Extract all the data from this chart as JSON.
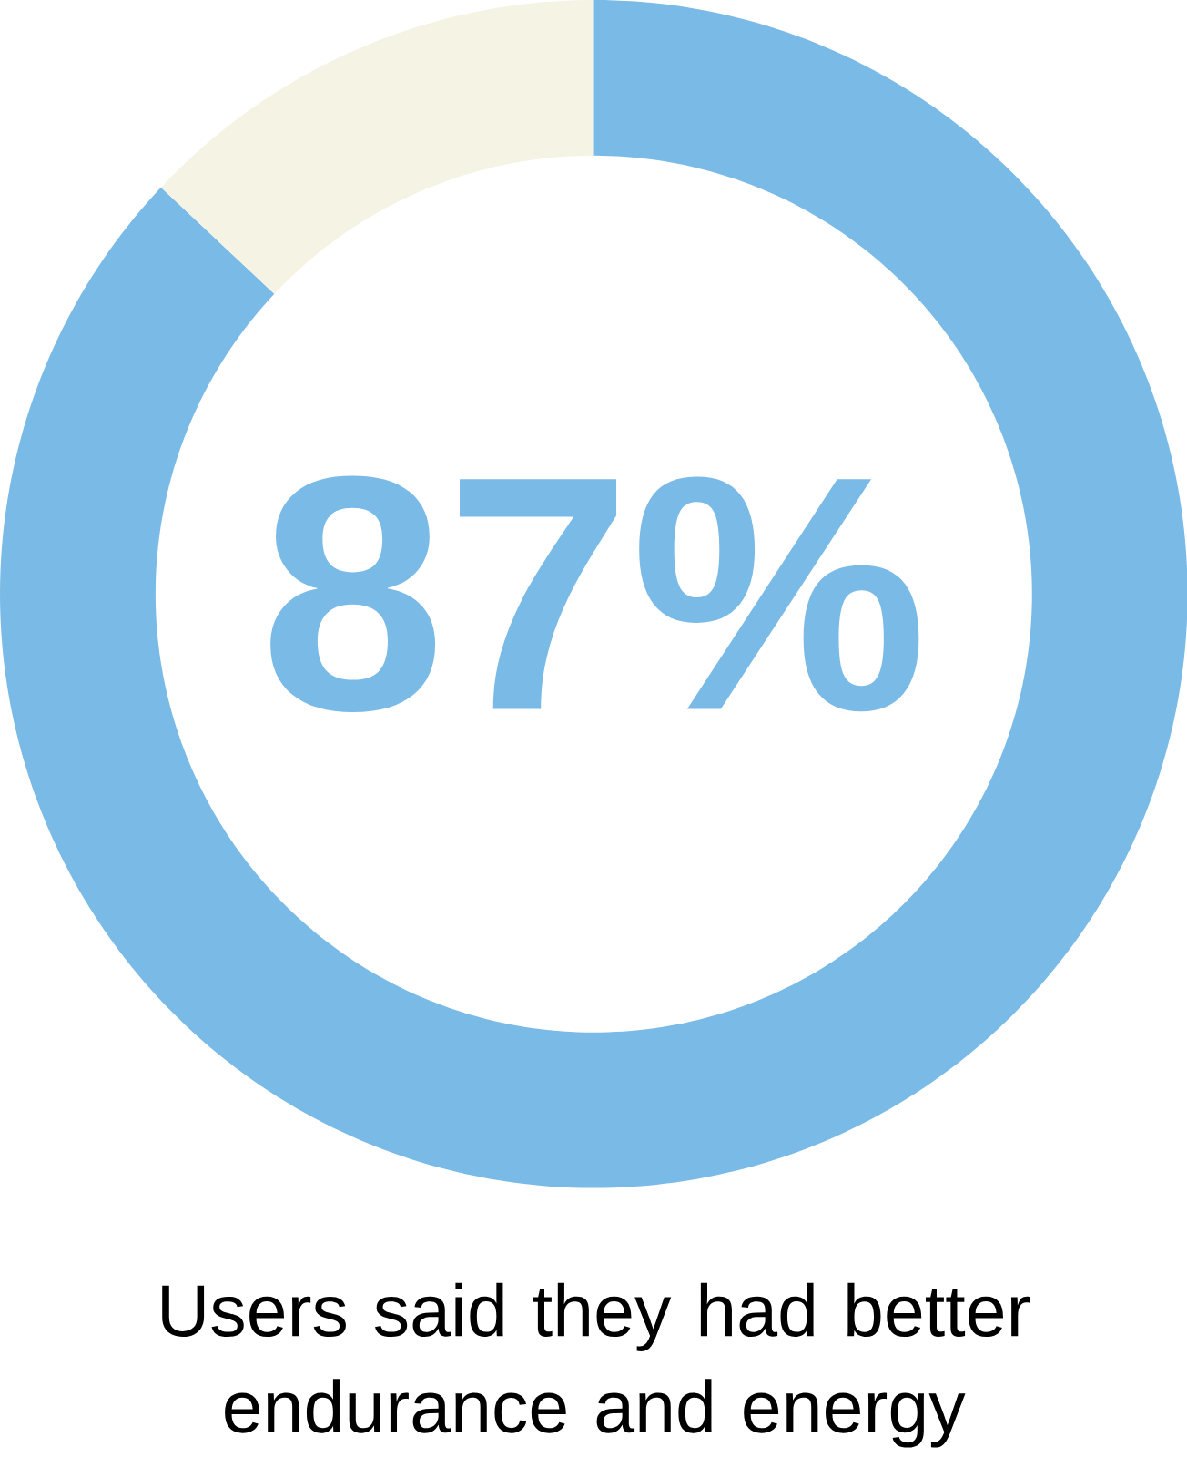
{
  "chart_data": {
    "type": "donut",
    "categories": [
      null,
      null
    ],
    "values": [
      87,
      13
    ],
    "colors": [
      "#7abae6",
      "#f5f4e4"
    ],
    "value_labels": [
      "87%",
      null
    ],
    "annotations": [
      "Users said they had better endurance and energy"
    ]
  }
}
